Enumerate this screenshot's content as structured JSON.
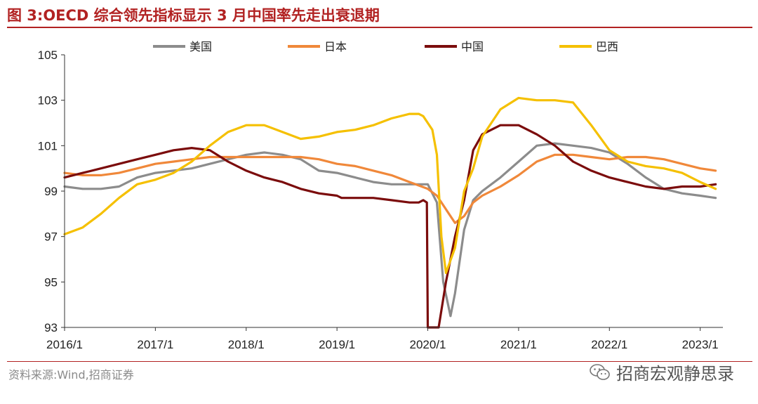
{
  "header": {
    "title": "图 3:OECD 综合领先指标显示 3 月中国率先走出衰退期"
  },
  "footer": {
    "source": "资料来源:Wind,招商证券",
    "watermark": "招商宏观静思录"
  },
  "colors": {
    "title": "#b22222"
  },
  "chart_data": {
    "type": "line",
    "title": "",
    "xlabel": "",
    "ylabel": "",
    "ylim": [
      93,
      105
    ],
    "yticks": [
      93,
      95,
      97,
      99,
      101,
      103,
      105
    ],
    "xlim": [
      2016.0,
      2023.25
    ],
    "xticks": [
      "2016/1",
      "2017/1",
      "2018/1",
      "2019/1",
      "2020/1",
      "2021/1",
      "2022/1",
      "2023/1"
    ],
    "legend_position": "top",
    "grid": false,
    "series": [
      {
        "name": "美国",
        "color": "#8c8c8c",
        "x": [
          2016.0,
          2016.2,
          2016.4,
          2016.6,
          2016.8,
          2017.0,
          2017.2,
          2017.4,
          2017.6,
          2017.8,
          2018.0,
          2018.2,
          2018.4,
          2018.6,
          2018.8,
          2019.0,
          2019.2,
          2019.4,
          2019.6,
          2019.8,
          2020.0,
          2020.1,
          2020.17,
          2020.25,
          2020.3,
          2020.4,
          2020.5,
          2020.6,
          2020.8,
          2021.0,
          2021.2,
          2021.4,
          2021.6,
          2021.8,
          2022.0,
          2022.2,
          2022.4,
          2022.6,
          2022.8,
          2023.0,
          2023.17
        ],
        "y": [
          99.2,
          99.1,
          99.1,
          99.2,
          99.6,
          99.8,
          99.9,
          100.0,
          100.2,
          100.4,
          100.6,
          100.7,
          100.6,
          100.4,
          99.9,
          99.8,
          99.6,
          99.4,
          99.3,
          99.3,
          99.3,
          98.5,
          95.0,
          93.5,
          94.5,
          97.3,
          98.6,
          99.0,
          99.6,
          100.3,
          101.0,
          101.1,
          101.0,
          100.9,
          100.7,
          100.2,
          99.6,
          99.1,
          98.9,
          98.8,
          98.7
        ]
      },
      {
        "name": "日本",
        "color": "#f0883a",
        "x": [
          2016.0,
          2016.2,
          2016.4,
          2016.6,
          2016.8,
          2017.0,
          2017.2,
          2017.4,
          2017.6,
          2017.8,
          2018.0,
          2018.2,
          2018.4,
          2018.6,
          2018.8,
          2019.0,
          2019.2,
          2019.4,
          2019.6,
          2019.8,
          2020.0,
          2020.1,
          2020.2,
          2020.3,
          2020.4,
          2020.5,
          2020.6,
          2020.8,
          2021.0,
          2021.2,
          2021.4,
          2021.6,
          2021.8,
          2022.0,
          2022.2,
          2022.4,
          2022.6,
          2022.8,
          2023.0,
          2023.17
        ],
        "y": [
          99.8,
          99.7,
          99.7,
          99.8,
          100.0,
          100.2,
          100.3,
          100.4,
          100.5,
          100.5,
          100.5,
          100.5,
          100.5,
          100.5,
          100.4,
          100.2,
          100.1,
          99.9,
          99.7,
          99.4,
          99.1,
          98.8,
          98.2,
          97.6,
          97.9,
          98.5,
          98.8,
          99.2,
          99.7,
          100.3,
          100.6,
          100.6,
          100.5,
          100.4,
          100.5,
          100.5,
          100.4,
          100.2,
          100.0,
          99.9
        ]
      },
      {
        "name": "中国",
        "color": "#7b0c0c",
        "x": [
          2016.0,
          2016.2,
          2016.4,
          2016.6,
          2016.8,
          2017.0,
          2017.2,
          2017.4,
          2017.6,
          2017.8,
          2018.0,
          2018.2,
          2018.4,
          2018.6,
          2018.8,
          2019.0,
          2019.05,
          2019.2,
          2019.4,
          2019.6,
          2019.8,
          2019.9,
          2019.95,
          2019.99,
          2020.0,
          2020.12,
          2020.2,
          2020.3,
          2020.4,
          2020.5,
          2020.6,
          2020.8,
          2021.0,
          2021.2,
          2021.4,
          2021.6,
          2021.8,
          2022.0,
          2022.2,
          2022.4,
          2022.6,
          2022.8,
          2023.0,
          2023.17
        ],
        "y": [
          99.6,
          99.8,
          100.0,
          100.2,
          100.4,
          100.6,
          100.8,
          100.9,
          100.8,
          100.3,
          99.9,
          99.6,
          99.4,
          99.1,
          98.9,
          98.8,
          98.7,
          98.7,
          98.7,
          98.6,
          98.5,
          98.5,
          98.6,
          98.5,
          93.0,
          93.0,
          95.0,
          97.0,
          98.6,
          100.8,
          101.5,
          101.9,
          101.9,
          101.5,
          101.0,
          100.3,
          99.9,
          99.6,
          99.4,
          99.2,
          99.1,
          99.2,
          99.2,
          99.3
        ]
      },
      {
        "name": "巴西",
        "color": "#f5c000",
        "x": [
          2016.0,
          2016.2,
          2016.4,
          2016.6,
          2016.8,
          2017.0,
          2017.2,
          2017.4,
          2017.6,
          2017.8,
          2018.0,
          2018.2,
          2018.4,
          2018.6,
          2018.8,
          2019.0,
          2019.2,
          2019.4,
          2019.6,
          2019.8,
          2019.9,
          2019.95,
          2020.0,
          2020.05,
          2020.1,
          2020.15,
          2020.2,
          2020.3,
          2020.4,
          2020.5,
          2020.6,
          2020.8,
          2021.0,
          2021.2,
          2021.4,
          2021.6,
          2021.8,
          2022.0,
          2022.2,
          2022.4,
          2022.6,
          2022.8,
          2023.0,
          2023.17
        ],
        "y": [
          97.1,
          97.4,
          98.0,
          98.7,
          99.3,
          99.5,
          99.8,
          100.3,
          101.0,
          101.6,
          101.9,
          101.9,
          101.6,
          101.3,
          101.4,
          101.6,
          101.7,
          101.9,
          102.2,
          102.4,
          102.4,
          102.3,
          102.0,
          101.7,
          100.6,
          97.0,
          95.4,
          96.5,
          99.0,
          100.0,
          101.4,
          102.6,
          103.1,
          103.0,
          103.0,
          102.9,
          101.9,
          100.8,
          100.3,
          100.1,
          100.0,
          99.8,
          99.4,
          99.1
        ]
      }
    ]
  }
}
